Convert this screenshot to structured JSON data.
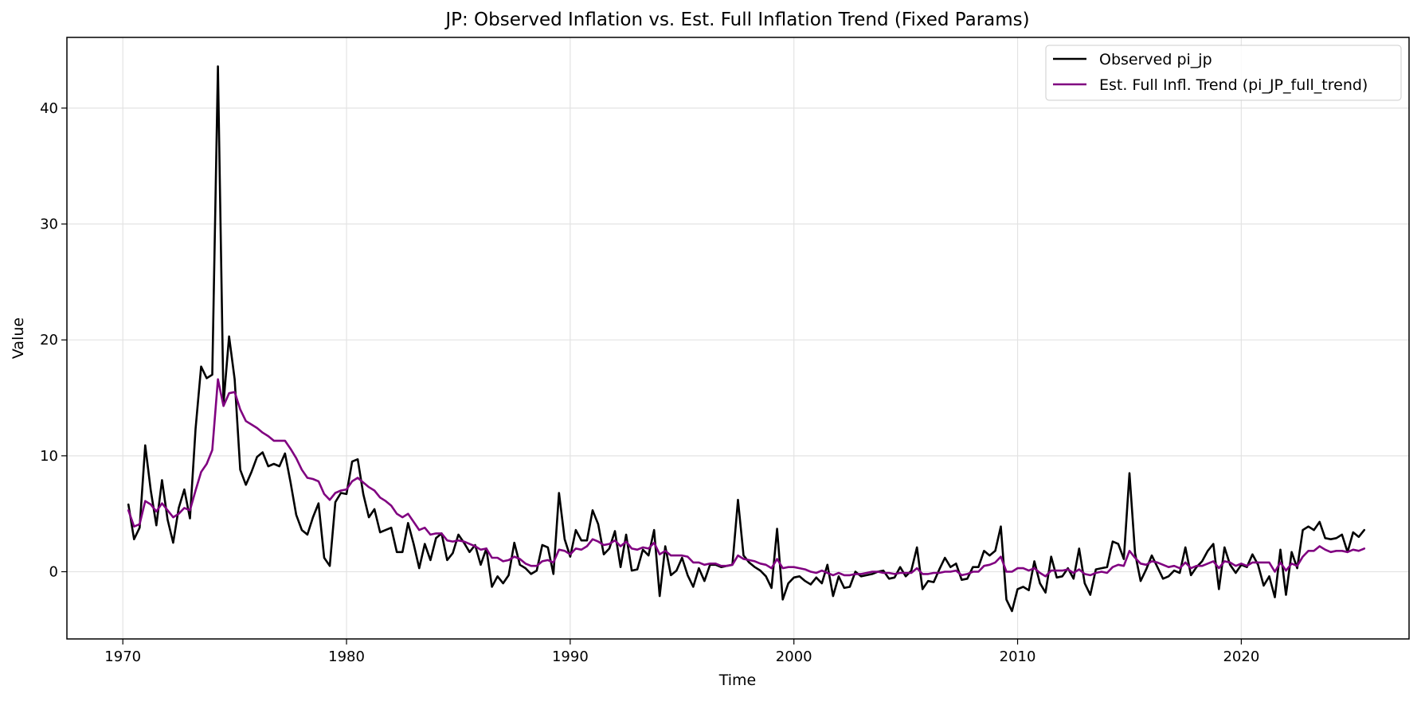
{
  "chart_data": {
    "type": "line",
    "title": "JP: Observed Inflation vs. Est. Full Inflation Trend (Fixed Params)",
    "xlabel": "Time",
    "ylabel": "Value",
    "xlim": [
      1967.5,
      2027.5
    ],
    "ylim": [
      -5.8,
      46.1
    ],
    "xticks": [
      1970,
      1980,
      1990,
      2000,
      2010,
      2020
    ],
    "yticks": [
      0,
      10,
      20,
      30,
      40
    ],
    "grid": true,
    "legend_position": "top-right",
    "x_start": 1970.25,
    "x_step": 0.25,
    "series": [
      {
        "name": "Observed pi_jp",
        "color": "#000000",
        "values": [
          5.8,
          2.8,
          3.8,
          10.9,
          7.0,
          4.0,
          7.9,
          4.5,
          2.5,
          5.5,
          7.1,
          4.6,
          12.3,
          17.7,
          16.7,
          17.0,
          43.6,
          14.5,
          20.3,
          16.6,
          8.8,
          7.5,
          8.6,
          9.9,
          10.3,
          9.1,
          9.3,
          9.1,
          10.2,
          7.7,
          4.9,
          3.6,
          3.2,
          4.7,
          5.9,
          1.2,
          0.5,
          6.0,
          6.8,
          6.7,
          9.5,
          9.7,
          6.7,
          4.7,
          5.4,
          3.4,
          3.6,
          3.8,
          1.7,
          1.7,
          4.2,
          2.4,
          0.3,
          2.4,
          1.0,
          2.9,
          3.3,
          1.0,
          1.6,
          3.2,
          2.5,
          1.7,
          2.3,
          0.6,
          2.0,
          -1.3,
          -0.4,
          -1.0,
          -0.3,
          2.5,
          0.6,
          0.3,
          -0.2,
          0.1,
          2.3,
          2.1,
          -0.2,
          6.8,
          2.8,
          1.3,
          3.6,
          2.7,
          2.7,
          5.3,
          4.1,
          1.5,
          2.0,
          3.5,
          0.4,
          3.2,
          0.1,
          0.2,
          1.9,
          1.4,
          3.6,
          -2.1,
          2.2,
          -0.3,
          0.1,
          1.2,
          -0.3,
          -1.3,
          0.3,
          -0.8,
          0.6,
          0.6,
          0.4,
          0.5,
          0.6,
          6.2,
          1.4,
          0.8,
          0.4,
          0.1,
          -0.4,
          -1.4,
          3.7,
          -2.4,
          -1.0,
          -0.5,
          -0.4,
          -0.8,
          -1.1,
          -0.5,
          -1.0,
          0.6,
          -2.1,
          -0.4,
          -1.4,
          -1.3,
          0.0,
          -0.4,
          -0.3,
          -0.2,
          0.0,
          0.1,
          -0.6,
          -0.5,
          0.4,
          -0.4,
          0.1,
          2.1,
          -1.5,
          -0.8,
          -0.9,
          0.2,
          1.2,
          0.4,
          0.7,
          -0.7,
          -0.6,
          0.4,
          0.4,
          1.8,
          1.4,
          1.8,
          3.9,
          -2.4,
          -3.4,
          -1.5,
          -1.3,
          -1.6,
          0.9,
          -1.0,
          -1.8,
          1.3,
          -0.5,
          -0.4,
          0.3,
          -0.6,
          2.0,
          -1.0,
          -2.0,
          0.2,
          0.3,
          0.4,
          2.6,
          2.4,
          1.1,
          8.5,
          1.6,
          -0.8,
          0.2,
          1.4,
          0.4,
          -0.6,
          -0.4,
          0.1,
          -0.1,
          2.1,
          -0.3,
          0.4,
          0.9,
          1.8,
          2.4,
          -1.5,
          2.1,
          0.6,
          -0.1,
          0.6,
          0.4,
          1.5,
          0.6,
          -1.2,
          -0.4,
          -2.2,
          1.9,
          -2.0,
          1.7,
          0.3,
          3.6,
          3.9,
          3.6,
          4.3,
          2.9,
          2.8,
          2.9,
          3.2,
          1.7,
          3.4,
          3.0,
          3.6
        ]
      },
      {
        "name": "Est. Full Infl. Trend (pi_JP_full_trend)",
        "color": "#800080",
        "values": [
          5.3,
          3.9,
          4.1,
          6.1,
          5.8,
          5.2,
          5.9,
          5.3,
          4.7,
          5.0,
          5.5,
          5.3,
          7.0,
          8.6,
          9.3,
          10.5,
          16.6,
          14.3,
          15.4,
          15.5,
          14.0,
          13.0,
          12.7,
          12.4,
          12.0,
          11.7,
          11.3,
          11.3,
          11.3,
          10.6,
          9.8,
          8.8,
          8.1,
          8.0,
          7.8,
          6.7,
          6.2,
          6.8,
          7.0,
          7.1,
          7.8,
          8.1,
          7.7,
          7.3,
          7.0,
          6.4,
          6.1,
          5.7,
          5.0,
          4.7,
          5.0,
          4.3,
          3.6,
          3.8,
          3.2,
          3.3,
          3.3,
          2.7,
          2.6,
          2.7,
          2.6,
          2.4,
          2.2,
          1.9,
          2.0,
          1.2,
          1.2,
          0.9,
          1.0,
          1.3,
          1.1,
          0.7,
          0.5,
          0.5,
          0.9,
          1.0,
          0.8,
          1.9,
          1.8,
          1.5,
          2.0,
          1.9,
          2.2,
          2.8,
          2.6,
          2.3,
          2.4,
          2.7,
          2.2,
          2.6,
          2.0,
          1.9,
          2.1,
          2.0,
          2.5,
          1.5,
          1.8,
          1.4,
          1.4,
          1.4,
          1.3,
          0.8,
          0.8,
          0.6,
          0.7,
          0.7,
          0.5,
          0.5,
          0.6,
          1.4,
          1.1,
          1.0,
          0.9,
          0.7,
          0.6,
          0.3,
          1.1,
          0.3,
          0.4,
          0.4,
          0.3,
          0.2,
          0.0,
          -0.1,
          0.1,
          -0.1,
          -0.3,
          -0.1,
          -0.3,
          -0.3,
          -0.2,
          -0.2,
          -0.1,
          0.0,
          0.0,
          -0.1,
          -0.1,
          -0.2,
          -0.1,
          -0.1,
          -0.1,
          0.3,
          -0.2,
          -0.2,
          -0.1,
          -0.1,
          0.0,
          0.0,
          0.1,
          -0.3,
          -0.2,
          0.0,
          0.0,
          0.5,
          0.6,
          0.8,
          1.3,
          0.0,
          0.0,
          0.3,
          0.3,
          0.1,
          0.3,
          -0.1,
          -0.4,
          0.1,
          0.1,
          0.1,
          0.2,
          -0.1,
          0.2,
          -0.2,
          -0.3,
          -0.1,
          0.0,
          -0.1,
          0.4,
          0.6,
          0.5,
          1.8,
          1.2,
          0.7,
          0.6,
          0.9,
          0.8,
          0.6,
          0.4,
          0.5,
          0.3,
          0.8,
          0.3,
          0.5,
          0.5,
          0.7,
          0.9,
          0.3,
          0.9,
          0.8,
          0.5,
          0.7,
          0.5,
          0.8,
          0.8,
          0.8,
          0.8,
          0.0,
          0.8,
          0.1,
          0.7,
          0.5,
          1.3,
          1.8,
          1.8,
          2.2,
          1.9,
          1.7,
          1.8,
          1.8,
          1.7,
          1.9,
          1.8,
          2.0
        ]
      }
    ]
  }
}
